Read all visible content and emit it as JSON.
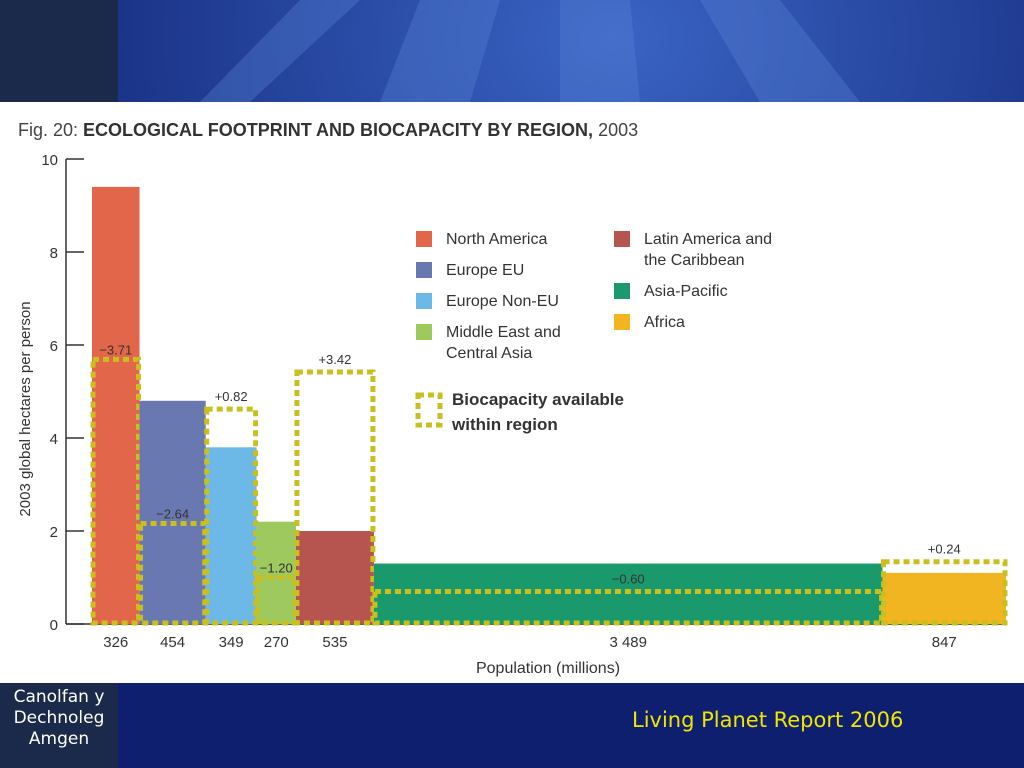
{
  "slide": {
    "organization": [
      "Canolfan y",
      "Dechnoleg",
      "Amgen"
    ],
    "footer": "Living Planet Report 2006",
    "colors": {
      "background": "#0d1f6e",
      "footer_text": "#f2e600",
      "side_block": "#1b2a4a"
    }
  },
  "chart_data": {
    "type": "bar",
    "title_prefix": "Fig. 20: ",
    "title_main": "ECOLOGICAL FOOTPRINT AND BIOCAPACITY BY REGION,",
    "title_suffix": " 2003",
    "xlabel": "Population (millions)",
    "ylabel": "2003 global hectares per person",
    "ylim": [
      0,
      10
    ],
    "yticks": [
      0,
      2,
      4,
      6,
      8,
      10
    ],
    "x_is_variable_width": true,
    "legend_position": "top-right",
    "regions": [
      {
        "name": "North America",
        "population": 326,
        "population_label": "326",
        "footprint": 9.4,
        "biocapacity": 5.69,
        "difference_label": "−3.71",
        "color": "#e2664a"
      },
      {
        "name": "Europe EU",
        "population": 454,
        "population_label": "454",
        "footprint": 4.8,
        "biocapacity": 2.16,
        "difference_label": "−2.64",
        "color": "#6978b0"
      },
      {
        "name": "Europe Non-EU",
        "population": 349,
        "population_label": "349",
        "footprint": 3.8,
        "biocapacity": 4.62,
        "difference_label": "+0.82",
        "color": "#6cb8e6"
      },
      {
        "name": "Middle East and Central Asia",
        "population": 270,
        "population_label": "270",
        "footprint": 2.2,
        "biocapacity": 1.0,
        "difference_label": "−1.20",
        "color": "#9dc95e"
      },
      {
        "name": "Latin America and the Caribbean",
        "population": 535,
        "population_label": "535",
        "footprint": 2.0,
        "biocapacity": 5.42,
        "difference_label": "+3.42",
        "color": "#b65550"
      },
      {
        "name": "Asia-Pacific",
        "population": 3489,
        "population_label": "3 489",
        "footprint": 1.3,
        "biocapacity": 0.7,
        "difference_label": "−0.60",
        "color": "#1a9a6c"
      },
      {
        "name": "Africa",
        "population": 847,
        "population_label": "847",
        "footprint": 1.1,
        "biocapacity": 1.34,
        "difference_label": "+0.24",
        "color": "#f0b520"
      }
    ],
    "legend": {
      "col1": [
        "North America",
        "Europe EU",
        "Europe Non-EU",
        "Middle East and\nCentral Asia"
      ],
      "col2": [
        "Latin America and\nthe Caribbean",
        "Asia-Pacific",
        "Africa"
      ],
      "biocapacity_label": "Biocapacity available\nwithin region",
      "biocapacity_color": "#c9bf1e"
    }
  }
}
